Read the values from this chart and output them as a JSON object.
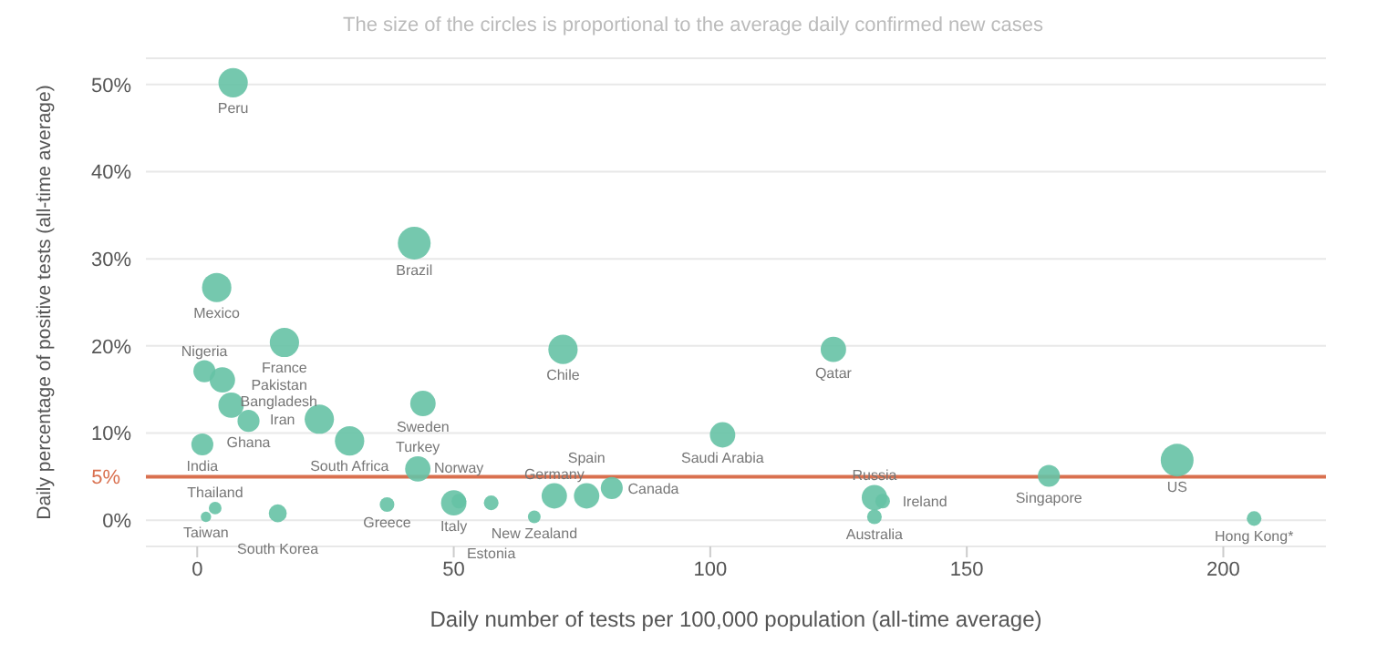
{
  "chart_data": {
    "type": "bubble",
    "subtitle": "The size of the circles is proportional to the average daily confirmed new cases",
    "xlabel": "Daily number of tests per 100,000 population (all-time average)",
    "ylabel": "Daily percentage of positive tests (all-time average)",
    "series": [
      {
        "color": "#66c2a5",
        "x": [
          7,
          42.3,
          3.8,
          17,
          71.3,
          124,
          1.4,
          4.9,
          6.6,
          10,
          44,
          23.8,
          29.7,
          1,
          102.4,
          43,
          166,
          191,
          3.5,
          1.7,
          15.7,
          37,
          50,
          51,
          57.3,
          65.7,
          69.6,
          75.9,
          80.8,
          132,
          133.6,
          132,
          206
        ],
        "values": [
          50.2,
          31.8,
          26.7,
          20.4,
          19.6,
          19.6,
          17.1,
          16.1,
          13.2,
          11.4,
          13.4,
          11.6,
          9.1,
          8.7,
          9.8,
          5.9,
          5.1,
          6.9,
          1.4,
          0.4,
          0.8,
          1.8,
          2,
          2.2,
          2,
          0.4,
          2.8,
          2.8,
          3.7,
          2.6,
          2.2,
          0.4,
          0.2
        ],
        "sizes": [
          0.8,
          1,
          0.8,
          0.8,
          0.8,
          0.6,
          0.45,
          0.6,
          0.6,
          0.45,
          0.6,
          0.8,
          0.8,
          0.45,
          0.6,
          0.6,
          0.45,
          1,
          0.15,
          0.1,
          0.3,
          0.2,
          0.6,
          0.2,
          0.2,
          0.15,
          0.6,
          0.6,
          0.45,
          0.6,
          0.2,
          0.2,
          0.2
        ]
      }
    ],
    "annotations": [
      {
        "text": "Peru",
        "x": 7,
        "y": 50.2
      },
      {
        "text": "Brazil",
        "x": 42.3,
        "y": 31.8
      },
      {
        "text": "Mexico",
        "x": 3.8,
        "y": 26.7
      },
      {
        "text": "France",
        "x": 17,
        "y": 20.4
      },
      {
        "text": "Chile",
        "x": 71.3,
        "y": 19.6
      },
      {
        "text": "Qatar",
        "x": 124,
        "y": 19.6
      },
      {
        "text": "Nigeria",
        "x": 1.4,
        "y": 17.1
      },
      {
        "text": "Bangladesh",
        "x": 4.9,
        "y": 16.1
      },
      {
        "text": "Pakistan",
        "x": 6.6,
        "y": 13.2
      },
      {
        "text": "Ghana",
        "x": 10,
        "y": 11.4
      },
      {
        "text": "Sweden",
        "x": 44,
        "y": 13.4
      },
      {
        "text": "Iran",
        "x": 23.8,
        "y": 11.6
      },
      {
        "text": "South Africa",
        "x": 29.7,
        "y": 9.1
      },
      {
        "text": "India",
        "x": 1,
        "y": 8.7
      },
      {
        "text": "Saudi Arabia",
        "x": 102.4,
        "y": 9.8
      },
      {
        "text": "Turkey",
        "x": 43,
        "y": 5.9
      },
      {
        "text": "Singapore",
        "x": 166,
        "y": 5.1
      },
      {
        "text": "US",
        "x": 191,
        "y": 6.9
      },
      {
        "text": "Thailand",
        "x": 3.5,
        "y": 1.4
      },
      {
        "text": "Taiwan",
        "x": 1.7,
        "y": 0.4
      },
      {
        "text": "South Korea",
        "x": 15.7,
        "y": 0.8
      },
      {
        "text": "Greece",
        "x": 37,
        "y": 1.8
      },
      {
        "text": "Italy",
        "x": 50,
        "y": 2
      },
      {
        "text": "Norway",
        "x": 51,
        "y": 2.2
      },
      {
        "text": "Estonia",
        "x": 57.3,
        "y": 2
      },
      {
        "text": "New Zealand",
        "x": 65.7,
        "y": 0.4
      },
      {
        "text": "Germany",
        "x": 69.6,
        "y": 2.8
      },
      {
        "text": "Spain",
        "x": 75.9,
        "y": 2.8
      },
      {
        "text": "Canada",
        "x": 80.8,
        "y": 3.7
      },
      {
        "text": "Russia",
        "x": 132,
        "y": 2.6
      },
      {
        "text": "Ireland",
        "x": 133.6,
        "y": 2.2
      },
      {
        "text": "Australia",
        "x": 132,
        "y": 0.4
      },
      {
        "text": "Hong Kong*",
        "x": 206,
        "y": 0.2
      }
    ],
    "ref_lines": [
      {
        "axis": "y",
        "value": 5,
        "label": "5%",
        "color": "#d9704f"
      }
    ],
    "xlim": [
      -10,
      220
    ],
    "xticks": [
      0,
      50,
      100,
      150,
      200
    ],
    "ylim": [
      -3,
      53
    ],
    "yticks": [
      {
        "value": 0,
        "label": "0%"
      },
      {
        "value": 10,
        "label": "10%"
      },
      {
        "value": 20,
        "label": "20%"
      },
      {
        "value": 30,
        "label": "30%"
      },
      {
        "value": 40,
        "label": "40%"
      },
      {
        "value": 50,
        "label": "50%"
      }
    ],
    "grid": "y",
    "legend": false
  }
}
